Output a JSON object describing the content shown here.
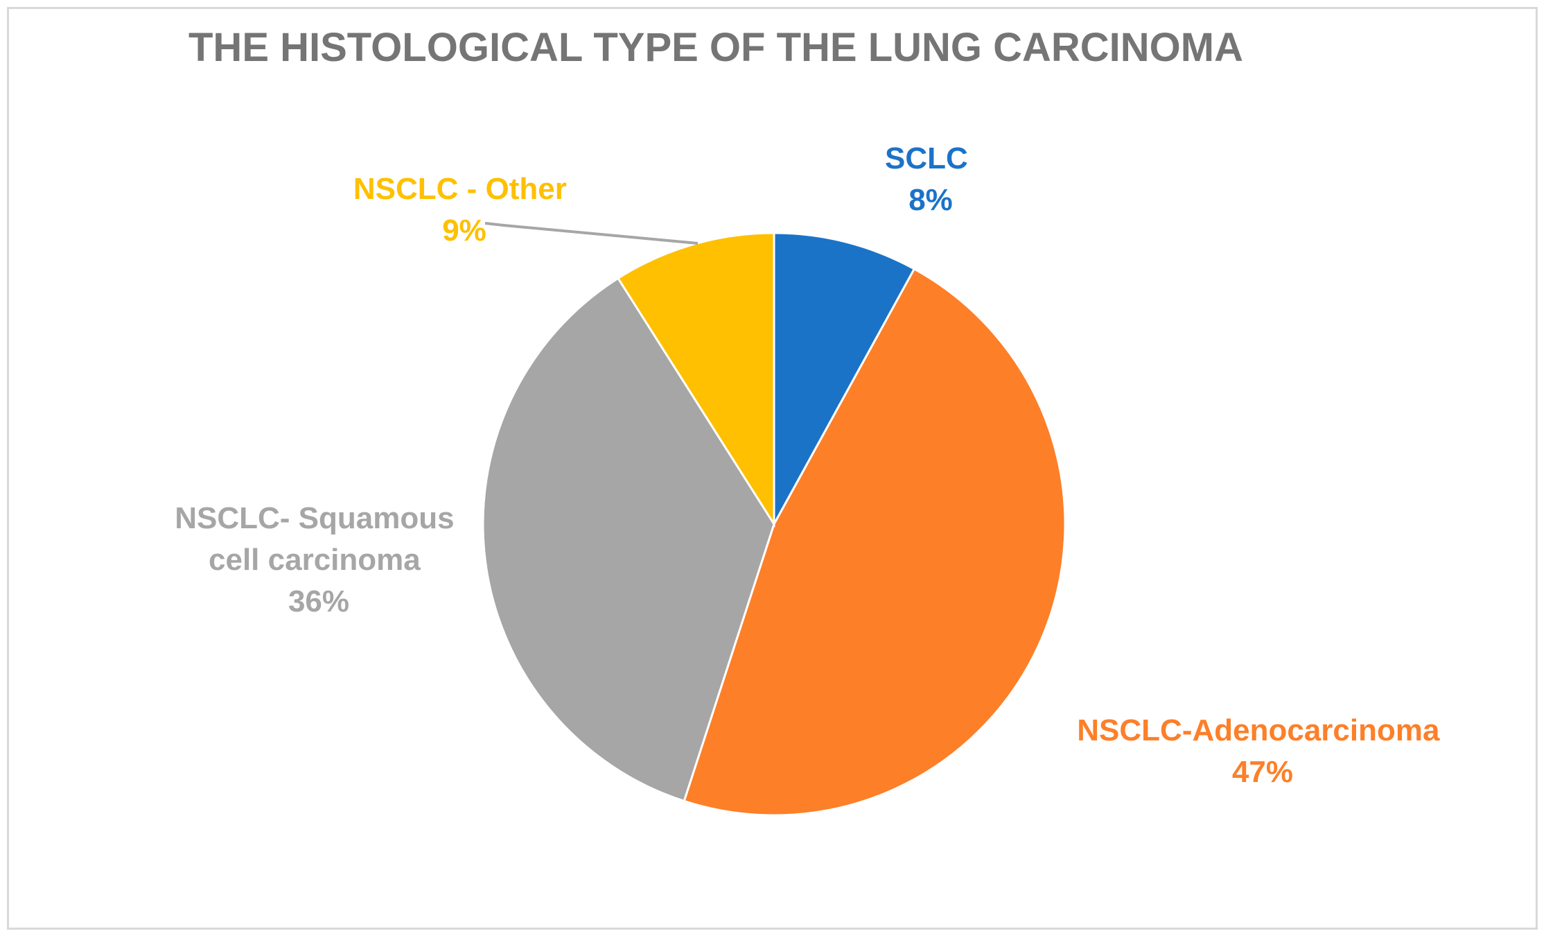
{
  "chart_data": {
    "type": "pie",
    "title": "THE HISTOLOGICAL TYPE OF THE LUNG CARCINOMA",
    "start_angle_deg": 0,
    "direction": "clockwise",
    "slices": [
      {
        "name": "SCLC",
        "value": 8,
        "label": "8%",
        "color": "#1b73c8"
      },
      {
        "name": "NSCLC-Adenocarcinoma",
        "value": 47,
        "label": "47%",
        "color": "#fd7f28"
      },
      {
        "name": "NSCLC- Squamous cell carcinoma",
        "value": 36,
        "label": "36%",
        "color": "#a6a6a6"
      },
      {
        "name": "NSCLC - Other",
        "value": 9,
        "label": "9%",
        "color": "#fec000"
      }
    ],
    "label_lines": {
      "sclc": [
        "SCLC",
        "8%"
      ],
      "adeno": [
        "NSCLC-Adenocarcinoma",
        "47%"
      ],
      "squamous": [
        "NSCLC- Squamous",
        "cell carcinoma",
        "36%"
      ],
      "other": [
        "NSCLC - Other",
        "9%"
      ]
    },
    "leader_line_color": "#a6a6a6",
    "legend": "none"
  }
}
